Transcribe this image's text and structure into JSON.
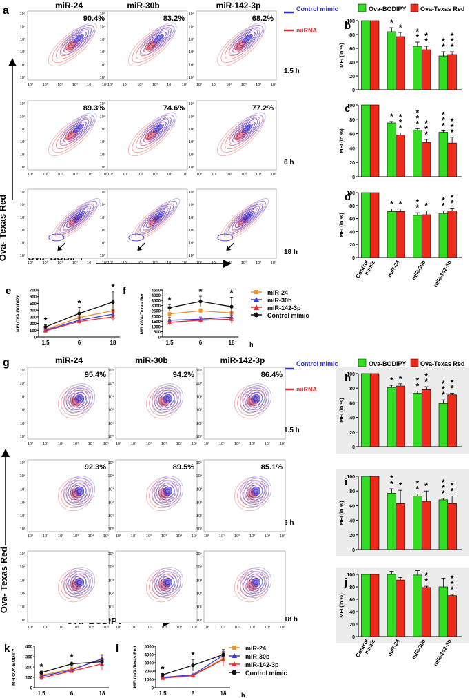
{
  "colors": {
    "control": "#2b2bd6",
    "mirna": "#e23030",
    "green": "#33dd22",
    "red": "#ee2a1c",
    "black": "#111111"
  },
  "columns": [
    "miR-24",
    "miR-30b",
    "miR-142-3p"
  ],
  "times": [
    "1.5 h",
    "6 h",
    "18 h"
  ],
  "panel_a": {
    "letter": "a",
    "percents": [
      [
        "90.4%",
        "83.2%",
        "68.2%"
      ],
      [
        "89.3%",
        "74.6%",
        "77.2%"
      ],
      [
        "",
        "",
        ""
      ]
    ],
    "ylabel": "Ova- Texas Red",
    "xlabel": "Ova- BODIPY"
  },
  "panel_g": {
    "letter": "g",
    "percents": [
      [
        "95.4%",
        "94.2%",
        "86.4%"
      ],
      [
        "92.3%",
        "89.5%",
        "85.1%"
      ],
      [
        "",
        "",
        ""
      ]
    ],
    "ylabel": "Ova- Texas Red",
    "xlabel": "Ova- BODIPY"
  },
  "flow_legend": {
    "control": "Control mimic",
    "mirna": "miRNA"
  },
  "flow_ticks": {
    "y": [
      "10⁵",
      "10⁴",
      "10³",
      "10²",
      "10¹",
      "10⁰"
    ],
    "x": [
      "10⁰",
      "10¹",
      "10²",
      "10³",
      "10⁴",
      "10⁵"
    ]
  },
  "bar_legend": {
    "green": "Ova-BODIPY",
    "red": "Ova-Texas Red"
  },
  "bar_categories": [
    "Control mimic",
    "miR-24",
    "miR-30b",
    "miR-142-3p"
  ],
  "bar_ylabel": "MFI (in %)",
  "bar_panels": [
    {
      "letter": "b",
      "green": [
        100,
        84,
        63,
        49
      ],
      "red": [
        100,
        77,
        58,
        51
      ],
      "green_err": [
        0,
        6,
        6,
        6
      ],
      "red_err": [
        0,
        6,
        5,
        4
      ],
      "green_stars": [
        "",
        "*",
        "**",
        "**"
      ],
      "red_stars": [
        "",
        "*",
        "**",
        "***"
      ]
    },
    {
      "letter": "c",
      "green": [
        100,
        75,
        65,
        62
      ],
      "red": [
        100,
        58,
        48,
        47
      ],
      "green_err": [
        0,
        2,
        2,
        2
      ],
      "red_err": [
        0,
        3,
        4,
        8
      ],
      "green_stars": [
        "",
        "*",
        "***",
        "***"
      ],
      "red_stars": [
        "",
        "***",
        "***",
        "***"
      ]
    },
    {
      "letter": "d",
      "green": [
        100,
        71,
        65,
        68
      ],
      "red": [
        100,
        71,
        66,
        72
      ],
      "green_err": [
        0,
        4,
        4,
        4
      ],
      "red_err": [
        0,
        4,
        6,
        4
      ],
      "green_stars": [
        "",
        "*",
        "**",
        "**"
      ],
      "red_stars": [
        "",
        "*",
        "*",
        "**"
      ]
    },
    {
      "letter": "h",
      "green": [
        100,
        81,
        73,
        59
      ],
      "red": [
        100,
        83,
        78,
        71
      ],
      "green_err": [
        0,
        3,
        3,
        5
      ],
      "red_err": [
        0,
        3,
        4,
        2
      ],
      "green_stars": [
        "",
        "*",
        "**",
        "***"
      ],
      "red_stars": [
        "",
        "*",
        "**",
        "**"
      ]
    },
    {
      "letter": "i",
      "green": [
        100,
        77,
        73,
        68
      ],
      "red": [
        100,
        63,
        66,
        63
      ],
      "green_err": [
        0,
        6,
        3,
        2
      ],
      "red_err": [
        0,
        18,
        14,
        10
      ],
      "green_stars": [
        "",
        "**",
        "**",
        "***"
      ],
      "red_stars": [
        "",
        "*",
        "*",
        "**"
      ]
    },
    {
      "letter": "j",
      "green": [
        100,
        100,
        99,
        80
      ],
      "red": [
        100,
        91,
        79,
        66
      ],
      "green_err": [
        0,
        5,
        7,
        14
      ],
      "red_err": [
        0,
        4,
        2,
        2
      ],
      "green_stars": [
        "",
        "",
        "",
        ""
      ],
      "red_stars": [
        "",
        "",
        "**",
        "***"
      ]
    }
  ],
  "bar_yticks": [
    "0",
    "20",
    "40",
    "60",
    "80",
    "100"
  ],
  "line_legend": [
    "miR-24",
    "miR-30b",
    "miR-142-3p",
    "Control mimic"
  ],
  "line_xlabel": "h",
  "chart_data": [
    {
      "type": "line",
      "letter": "e",
      "ylabel": "MFI OVA-BODIPY",
      "x": [
        "1.5",
        "6",
        "18"
      ],
      "ylim": [
        0,
        700
      ],
      "yticks": [
        "0",
        "100",
        "200",
        "300",
        "400",
        "500",
        "600",
        "700"
      ],
      "series": [
        {
          "name": "miR-24",
          "values": [
            110,
            290,
            390
          ],
          "err": [
            20,
            40,
            60
          ]
        },
        {
          "name": "miR-30b",
          "values": [
            100,
            250,
            340
          ],
          "err": [
            20,
            40,
            60
          ]
        },
        {
          "name": "miR-142-3p",
          "values": [
            90,
            230,
            300
          ],
          "err": [
            20,
            40,
            60
          ]
        },
        {
          "name": "Control mimic",
          "values": [
            150,
            350,
            520
          ],
          "err": [
            30,
            90,
            160
          ]
        }
      ],
      "stars": [
        "*",
        "*",
        "*"
      ]
    },
    {
      "type": "line",
      "letter": "f",
      "ylabel": "MFI OVA-Texas Red",
      "x": [
        "1.5",
        "6",
        "18"
      ],
      "ylim": [
        0,
        4500
      ],
      "yticks": [
        "0",
        "500",
        "1000",
        "1500",
        "2000",
        "2500",
        "3000",
        "3500",
        "4000",
        "4500"
      ],
      "series": [
        {
          "name": "miR-24",
          "values": [
            2200,
            2500,
            2300
          ],
          "err": [
            300,
            200,
            400
          ]
        },
        {
          "name": "miR-30b",
          "values": [
            1600,
            1700,
            1900
          ],
          "err": [
            300,
            300,
            400
          ]
        },
        {
          "name": "miR-142-3p",
          "values": [
            1400,
            1600,
            1700
          ],
          "err": [
            300,
            300,
            400
          ]
        },
        {
          "name": "Control mimic",
          "values": [
            2800,
            3400,
            2900
          ],
          "err": [
            300,
            500,
            900
          ]
        }
      ],
      "stars": [
        "*",
        "*",
        "*"
      ]
    },
    {
      "type": "line",
      "letter": "k",
      "ylabel": "MFI OVA-BODIPY",
      "x": [
        "1.5",
        "6",
        "18"
      ],
      "ylim": [
        0,
        400
      ],
      "yticks": [
        "0",
        "100",
        "200",
        "300",
        "400"
      ],
      "series": [
        {
          "name": "miR-24",
          "values": [
            120,
            180,
            270
          ],
          "err": [
            20,
            20,
            40
          ]
        },
        {
          "name": "miR-30b",
          "values": [
            110,
            170,
            280
          ],
          "err": [
            20,
            20,
            40
          ]
        },
        {
          "name": "miR-142-3p",
          "values": [
            95,
            160,
            230
          ],
          "err": [
            20,
            20,
            60
          ]
        },
        {
          "name": "Control mimic",
          "values": [
            145,
            230,
            250
          ],
          "err": [
            15,
            25,
            35
          ]
        }
      ],
      "stars": [
        "*",
        "*",
        ""
      ]
    },
    {
      "type": "line",
      "letter": "l",
      "ylabel": "MFI OVA-Texas Red",
      "x": [
        "1.5",
        "6",
        "18"
      ],
      "ylim": [
        0,
        5000
      ],
      "yticks": [
        "0",
        "1000",
        "2000",
        "3000",
        "4000",
        "5000"
      ],
      "series": [
        {
          "name": "miR-24",
          "values": [
            1200,
            1500,
            3500
          ],
          "err": [
            100,
            100,
            500
          ]
        },
        {
          "name": "miR-30b",
          "values": [
            1250,
            1550,
            3900
          ],
          "err": [
            100,
            100,
            500
          ]
        },
        {
          "name": "miR-142-3p",
          "values": [
            1150,
            1450,
            3400
          ],
          "err": [
            100,
            100,
            800
          ]
        },
        {
          "name": "Control mimic",
          "values": [
            1550,
            2700,
            4000
          ],
          "err": [
            150,
            700,
            600
          ]
        }
      ],
      "stars": [
        "*",
        "*",
        ""
      ]
    }
  ]
}
